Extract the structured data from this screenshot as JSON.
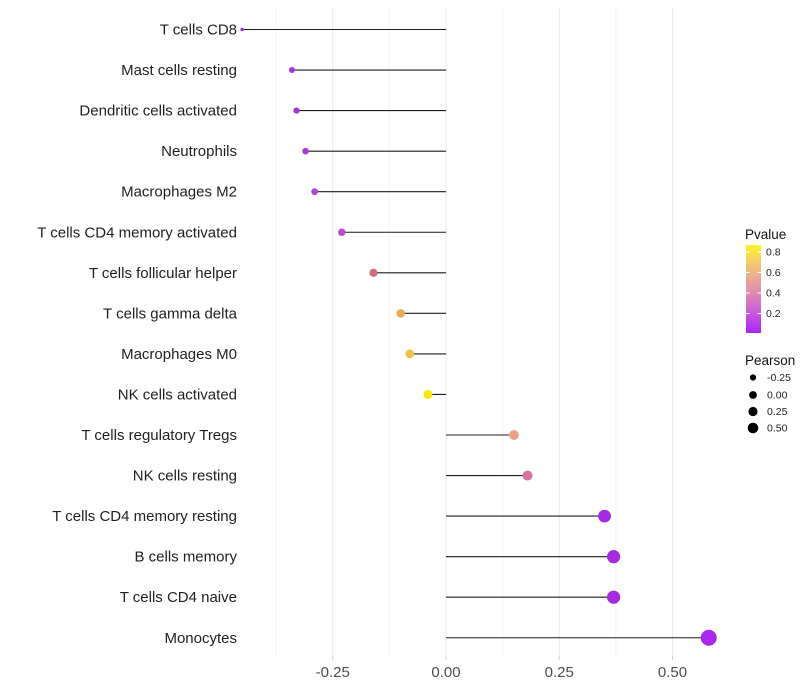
{
  "chart_data": {
    "type": "lollipop",
    "title": "",
    "xlabel": "",
    "ylabel": "",
    "x_tick_values": [
      -0.25,
      0,
      0.25,
      0.5
    ],
    "x_tick_labels": [
      "-0.25",
      "0.00",
      "0.25",
      "0.50"
    ],
    "x_minor_gridlines": [
      -0.375,
      -0.125,
      0.125,
      0.375
    ],
    "xlim": [
      -0.5,
      0.63
    ],
    "grid": "vertical-only-light-gray",
    "legend_position": "right",
    "rows": [
      {
        "label": "T cells CD8",
        "pearson": -0.45,
        "pvalue_approx": 0.05,
        "color": "#9C33DB",
        "r": 1.8
      },
      {
        "label": "Mast cells resting",
        "pearson": -0.34,
        "pvalue_approx": 0.06,
        "color": "#A733DC",
        "r": 3.0
      },
      {
        "label": "Dendritic cells activated",
        "pearson": -0.33,
        "pvalue_approx": 0.06,
        "color": "#A733DC",
        "r": 3.1
      },
      {
        "label": "Neutrophils",
        "pearson": -0.31,
        "pvalue_approx": 0.08,
        "color": "#A83BD6",
        "r": 3.3
      },
      {
        "label": "Macrophages M2",
        "pearson": -0.29,
        "pvalue_approx": 0.1,
        "color": "#AF46CF",
        "r": 3.4
      },
      {
        "label": "T cells CD4 memory activated",
        "pearson": -0.23,
        "pvalue_approx": 0.18,
        "color": "#B950C9",
        "r": 3.8
      },
      {
        "label": "T cells follicular helper",
        "pearson": -0.16,
        "pvalue_approx": 0.35,
        "color": "#D0707F",
        "r": 4.1
      },
      {
        "label": "T cells gamma delta",
        "pearson": -0.1,
        "pvalue_approx": 0.55,
        "color": "#EBAC55",
        "r": 4.3
      },
      {
        "label": "Macrophages M0",
        "pearson": -0.08,
        "pvalue_approx": 0.62,
        "color": "#EDC14B",
        "r": 4.4
      },
      {
        "label": "NK cells activated",
        "pearson": -0.04,
        "pvalue_approx": 0.8,
        "color": "#F1E90D",
        "r": 4.5
      },
      {
        "label": "T cells regulatory  Tregs",
        "pearson": 0.15,
        "pvalue_approx": 0.5,
        "color": "#EAA284",
        "r": 4.9
      },
      {
        "label": "NK cells resting",
        "pearson": 0.18,
        "pvalue_approx": 0.4,
        "color": "#D6749F",
        "r": 5.0
      },
      {
        "label": "T cells CD4 memory resting",
        "pearson": 0.35,
        "pvalue_approx": 0.05,
        "color": "#A42BDF",
        "r": 6.4
      },
      {
        "label": "B cells memory",
        "pearson": 0.37,
        "pvalue_approx": 0.05,
        "color": "#A42BDF",
        "r": 6.6
      },
      {
        "label": "T cells CD4 naive",
        "pearson": 0.37,
        "pvalue_approx": 0.05,
        "color": "#A42BDF",
        "r": 6.6
      },
      {
        "label": "Monocytes",
        "pearson": 0.58,
        "pvalue_approx": 0.03,
        "color": "#A928EC",
        "r": 8.0
      }
    ],
    "legends": {
      "pvalue": {
        "title": "Pvalue",
        "tick_labels": [
          "0.8",
          "0.6",
          "0.4",
          "0.2"
        ],
        "range": [
          0,
          0.87
        ],
        "gradient_top_to_bottom": [
          "#FCF61F",
          "#F4D165",
          "#EDB18C",
          "#E392AC",
          "#D572C9",
          "#BF4BE3",
          "#A527F4"
        ]
      },
      "pearson": {
        "title": "Pearson",
        "dot_color": "#000000",
        "items": [
          {
            "label": "-0.25",
            "r": 3.1
          },
          {
            "label": "0.00",
            "r": 3.9
          },
          {
            "label": "0.25",
            "r": 4.6
          },
          {
            "label": "0.50",
            "r": 5.3
          }
        ]
      }
    },
    "colors": {
      "stem": "#1C1C1C",
      "axis_text": "#4D4D4D",
      "row_label": "#1F1F1F",
      "grid_major": "#E9E9E9",
      "grid_minor": "#F4F4F4",
      "tick_mark": "#CFCFCF",
      "legend_text": "#222222",
      "legend_title": "#111111"
    }
  }
}
